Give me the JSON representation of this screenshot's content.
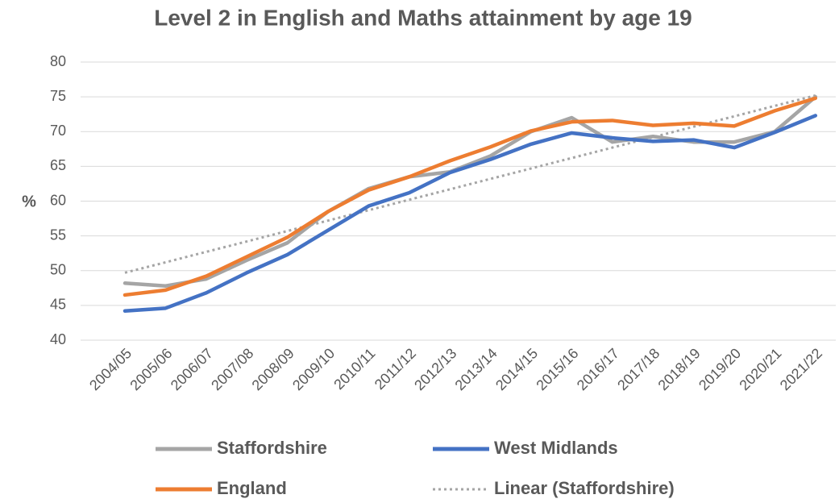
{
  "chart_data": {
    "type": "line",
    "title": "Level 2 in English and Maths attainment by age 19",
    "y_label": "%",
    "categories": [
      "2004/05",
      "2005/06",
      "2006/07",
      "2007/08",
      "2008/09",
      "2009/10",
      "2010/11",
      "2011/12",
      "2012/13",
      "2013/14",
      "2014/15",
      "2015/16",
      "2016/17",
      "2017/18",
      "2018/19",
      "2019/20",
      "2020/21",
      "2021/22"
    ],
    "series": [
      {
        "name": "Staffordshire",
        "color": "#a5a5a5",
        "values": [
          48.2,
          47.8,
          48.8,
          51.5,
          54,
          58.5,
          61.8,
          63.5,
          64.2,
          66.5,
          70,
          72,
          68.5,
          69.3,
          68.5,
          68.5,
          70,
          75
        ]
      },
      {
        "name": "West Midlands",
        "color": "#4472c4",
        "values": [
          44.2,
          44.6,
          46.8,
          49.7,
          52.3,
          55.8,
          59.3,
          61.2,
          64.1,
          66,
          68.2,
          69.8,
          69.1,
          68.6,
          68.8,
          67.7,
          69.9,
          72.3
        ]
      },
      {
        "name": "England",
        "color": "#ed7d31",
        "values": [
          46.5,
          47.2,
          49.2,
          52,
          54.8,
          58.5,
          61.6,
          63.5,
          65.8,
          67.8,
          70.1,
          71.4,
          71.6,
          70.9,
          71.2,
          70.8,
          73,
          74.8
        ]
      },
      {
        "name": "Linear (Staffordshire)",
        "color": "#a5a5a5",
        "dashed": true,
        "values": [
          49.7,
          51.2,
          52.7,
          54.2,
          55.7,
          57.2,
          58.7,
          60.2,
          61.7,
          63.2,
          64.7,
          66.2,
          67.7,
          69.2,
          70.7,
          72.2,
          73.7,
          75.2
        ]
      }
    ],
    "ylim": [
      40,
      80
    ],
    "yticks": [
      40,
      45,
      50,
      55,
      60,
      65,
      70,
      75,
      80
    ],
    "grid": true,
    "legend": "bottom"
  }
}
